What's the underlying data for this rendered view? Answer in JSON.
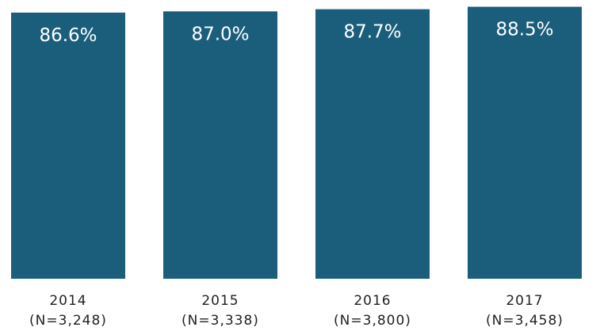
{
  "chart_data": {
    "type": "bar",
    "categories": [
      "2014\n(N=3,248)",
      "2015\n(N=3,338)",
      "2016\n(N=3,800)",
      "2017\n(N=3,458)"
    ],
    "values": [
      86.6,
      87.0,
      87.7,
      88.5
    ],
    "value_labels": [
      "86.6%",
      "87.0%",
      "87.7%",
      "88.5%"
    ],
    "color": "#1b5e7b",
    "ylim": [
      0,
      90.7
    ]
  }
}
